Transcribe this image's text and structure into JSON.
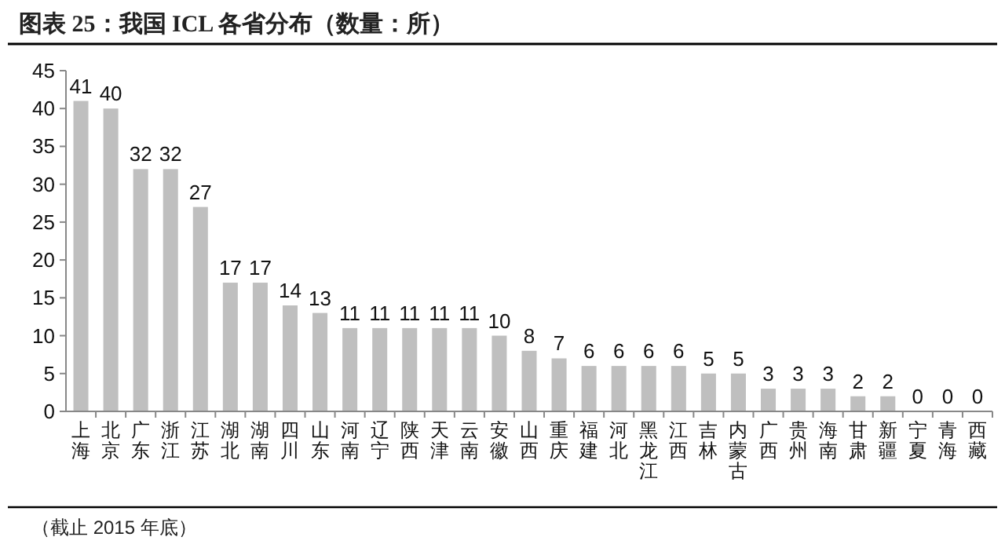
{
  "chart_data": {
    "type": "bar",
    "title": "图表 25：我国 ICL 各省分布（数量：所）",
    "categories": [
      "上海",
      "北京",
      "广东",
      "浙江",
      "江苏",
      "湖北",
      "湖南",
      "四川",
      "山东",
      "河南",
      "辽宁",
      "陕西",
      "天津",
      "云南",
      "安徽",
      "山西",
      "重庆",
      "福建",
      "河北",
      "黑龙江",
      "江西",
      "吉林",
      "内蒙古",
      "广西",
      "贵州",
      "海南",
      "甘肃",
      "新疆",
      "宁夏",
      "青海",
      "西藏"
    ],
    "values": [
      41,
      40,
      32,
      32,
      27,
      17,
      17,
      14,
      13,
      11,
      11,
      11,
      11,
      11,
      10,
      8,
      7,
      6,
      6,
      6,
      6,
      5,
      5,
      3,
      3,
      3,
      2,
      2,
      0,
      0,
      0
    ],
    "color": "#bfbfbf",
    "ylim": [
      0,
      45
    ],
    "yticks": [
      0,
      5,
      10,
      15,
      20,
      25,
      30,
      35,
      40,
      45
    ],
    "grid": false,
    "data_labels": true,
    "annotations": [
      "（截止 2015 年底）"
    ]
  }
}
